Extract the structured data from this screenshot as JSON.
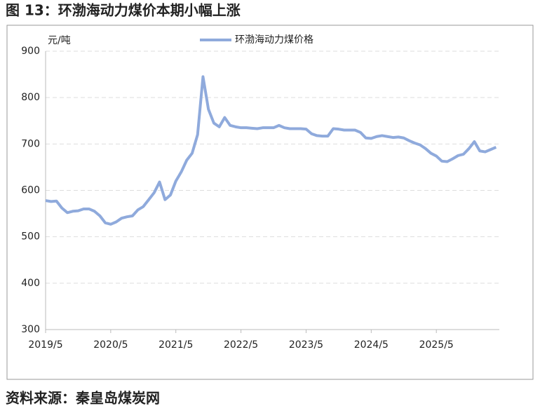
{
  "title": "图 13：环渤海动力煤价本期小幅上涨",
  "source": "资料来源：秦皇岛煤炭网",
  "chart_data": {
    "type": "line",
    "y_label": "元/吨",
    "x": [
      2019.333,
      2019.417,
      2019.5,
      2019.583,
      2019.667,
      2019.75,
      2019.833,
      2019.917,
      2020.0,
      2020.083,
      2020.167,
      2020.25,
      2020.333,
      2020.417,
      2020.5,
      2020.583,
      2020.667,
      2020.75,
      2020.833,
      2020.917,
      2021.0,
      2021.083,
      2021.167,
      2021.25,
      2021.333,
      2021.417,
      2021.5,
      2021.583,
      2021.667,
      2021.75,
      2021.833,
      2021.917,
      2022.0,
      2022.083,
      2022.167,
      2022.25,
      2022.333,
      2022.417,
      2022.5,
      2022.583,
      2022.667,
      2022.75,
      2022.833,
      2022.917,
      2023.0,
      2023.083,
      2023.167,
      2023.25,
      2023.333,
      2023.417,
      2023.5,
      2023.583,
      2023.667,
      2023.75,
      2023.833,
      2023.917,
      2024.0,
      2024.083,
      2024.167,
      2024.25,
      2024.333,
      2024.417,
      2024.5,
      2024.583,
      2024.667,
      2024.75,
      2024.833,
      2024.917,
      2025.0,
      2025.083,
      2025.167,
      2025.25,
      2025.333,
      2025.417,
      2025.5,
      2025.583,
      2025.667,
      2025.75,
      2025.833,
      2025.917,
      2026.0,
      2026.083,
      2026.167,
      2026.25
    ],
    "series": [
      {
        "name": "环渤海动力煤价格",
        "color": "#8faadc",
        "values": [
          578,
          576,
          577,
          562,
          552,
          555,
          556,
          560,
          560,
          555,
          545,
          530,
          527,
          532,
          540,
          543,
          545,
          558,
          565,
          580,
          595,
          618,
          580,
          590,
          620,
          640,
          665,
          680,
          720,
          845,
          775,
          745,
          737,
          757,
          740,
          737,
          735,
          735,
          734,
          733,
          735,
          735,
          735,
          740,
          735,
          733,
          733,
          733,
          732,
          722,
          718,
          717,
          717,
          733,
          732,
          730,
          730,
          730,
          725,
          713,
          712,
          716,
          718,
          716,
          714,
          715,
          713,
          707,
          702,
          698,
          690,
          680,
          674,
          663,
          662,
          668,
          675,
          678,
          690,
          705,
          685,
          683,
          688,
          693
        ]
      }
    ],
    "xlim": [
      2019.333,
      2026.3
    ],
    "xticks": [
      {
        "value": 2019.333,
        "label": "2019/5"
      },
      {
        "value": 2020.333,
        "label": "2020/5"
      },
      {
        "value": 2021.333,
        "label": "2021/5"
      },
      {
        "value": 2022.333,
        "label": "2022/5"
      },
      {
        "value": 2023.333,
        "label": "2023/5"
      },
      {
        "value": 2024.333,
        "label": "2024/5"
      },
      {
        "value": 2025.333,
        "label": "2025/5"
      }
    ],
    "ylim": [
      300,
      900
    ],
    "yticks": [
      300,
      400,
      500,
      600,
      700,
      800,
      900
    ],
    "grid": true
  }
}
